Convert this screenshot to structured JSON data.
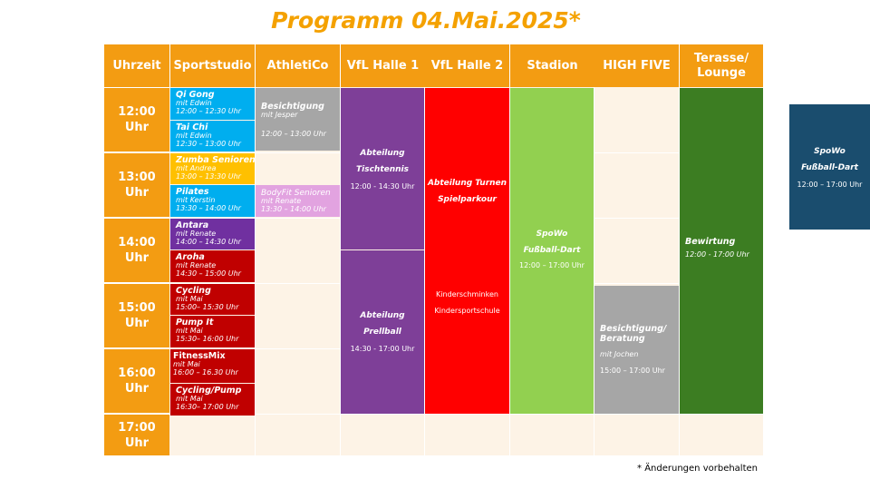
{
  "title": "Programm 04.Mai.2025*",
  "headers": [
    "Uhrzeit",
    "Sportstudio",
    "AthletiCo",
    "VfL Halle 1",
    "VfL Halle 2",
    "Stadion",
    "HIGH FIVE",
    "Terasse/\nLounge"
  ],
  "times": [
    "12:00\nUhr",
    "13:00\nUhr",
    "14:00\nUhr",
    "15:00\nUhr",
    "16:00\nUhr",
    "17:00\nUhr"
  ],
  "events": {
    "qigong": {
      "name": "Qi Gong",
      "with": "mit Edwin",
      "time": "12:00 – 12:30 Uhr"
    },
    "taichi": {
      "name": "Tai Chi",
      "with": "mit Edwin",
      "time": "12:30 – 13:00 Uhr"
    },
    "zumba": {
      "name": "Zumba Senioren",
      "with": "mit Andrea",
      "time": "13:00 – 13:30 Uhr"
    },
    "pilates": {
      "name": "Pilates",
      "with": "mit Kerstin",
      "time": "13:30 – 14:00 Uhr"
    },
    "antara": {
      "name": "Antara",
      "with": "mit Renate",
      "time": "14:00 – 14:30 Uhr"
    },
    "aroha": {
      "name": "Aroha",
      "with": "mit Renate",
      "time": "14:30 – 15:00 Uhr"
    },
    "cycling": {
      "name": "Cycling",
      "with": "mit Mai",
      "time": "15:00– 15:30 Uhr"
    },
    "pumpit": {
      "name": "Pump It",
      "with": "mit Mai",
      "time": "15:30– 16:00 Uhr"
    },
    "fitnessmix": {
      "name": "FitnessMix",
      "with": "mit Mai",
      "time": "16:00 – 16.30 Uhr"
    },
    "cyclingpump": {
      "name": "Cycling/Pump",
      "with": "mit Mai",
      "time": "16:30– 17:00 Uhr"
    },
    "besichtigung_ath": {
      "name": "Besichtigung",
      "with": "mit Jesper",
      "time": "12:00 – 13:00 Uhr"
    },
    "bodyfit": {
      "name": "BodyFit Senioren",
      "with": "mit Renate",
      "time": "13:30 – 14:00 Uhr"
    },
    "tischtennis": {
      "name1": "Abteilung",
      "name2": "Tischtennis",
      "time": "12:00 - 14:30 Uhr"
    },
    "prellball": {
      "name1": "Abteilung",
      "name2": "Prellball",
      "time": "14:30 - 17:00 Uhr"
    },
    "turnen": {
      "name1": "Abteilung Turnen",
      "name2": "Spielparkour",
      "extra1": "Kinderschminken",
      "extra2": "Kindersportschule"
    },
    "stadion": {
      "name1": "SpoWo",
      "name2": "Fußball-Dart",
      "time": "12:00 – 17:00 Uhr"
    },
    "highfive": {
      "name1": "Besichtigung/",
      "name2": "Beratung",
      "with": "mit Jochen",
      "time": "15:00 – 17:00 Uhr"
    },
    "bewirtung": {
      "name": "Bewirtung",
      "time": "12:00 - 17:00 Uhr"
    },
    "side": {
      "name1": "SpoWo",
      "name2": "Fußball-Dart",
      "time": "12:00 – 17:00 Uhr"
    }
  },
  "note": "* Änderungen vorbehalten",
  "colors": {
    "orange": "#f39c12",
    "blue": "#00aeef",
    "gray": "#a6a6a6",
    "yellow": "#ffc000",
    "purple": "#7030a0",
    "red": "#c00000",
    "violet": "#7e3f98",
    "brightred": "#ff0000",
    "green": "#92d050",
    "darkgreen": "#3c7d22",
    "lilac": "#d9a0d9",
    "navy": "#1a4d6e"
  }
}
